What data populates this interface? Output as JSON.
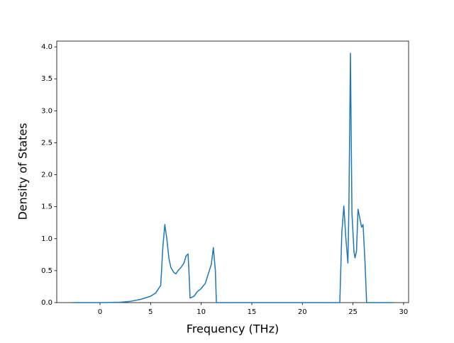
{
  "chart_data": {
    "type": "line",
    "x_label": "Frequency (THz)",
    "y_label": "Density of States",
    "x": [
      -2.7,
      0,
      2,
      3,
      4,
      5,
      5.5,
      6,
      6.2,
      6.4,
      6.6,
      6.8,
      7.0,
      7.3,
      7.5,
      7.7,
      8.0,
      8.3,
      8.5,
      8.7,
      8.8,
      8.9,
      9.3,
      9.6,
      10.0,
      10.4,
      10.7,
      11.0,
      11.2,
      11.4,
      11.5,
      12,
      23.7,
      23.9,
      24.1,
      24.3,
      24.5,
      24.6,
      24.75,
      24.9,
      25.1,
      25.2,
      25.35,
      25.5,
      25.7,
      25.85,
      26.0,
      26.2,
      26.35,
      29
    ],
    "series": [
      {
        "color": "#1f77b4",
        "values": [
          0,
          0,
          0.005,
          0.02,
          0.05,
          0.1,
          0.15,
          0.27,
          0.85,
          1.22,
          1.0,
          0.7,
          0.55,
          0.47,
          0.45,
          0.5,
          0.55,
          0.62,
          0.73,
          0.76,
          0.45,
          0.07,
          0.1,
          0.17,
          0.22,
          0.3,
          0.45,
          0.6,
          0.86,
          0.5,
          0,
          0,
          0,
          1.1,
          1.51,
          1.0,
          0.62,
          1.5,
          3.9,
          1.4,
          0.8,
          0.7,
          0.8,
          1.46,
          1.3,
          1.18,
          1.22,
          0.6,
          0,
          0
        ]
      }
    ],
    "xlim": [
      -4.28,
      30.5
    ],
    "ylim": [
      0,
      4.09
    ],
    "xticks": [
      0,
      5,
      10,
      15,
      20,
      25,
      30
    ],
    "yticks": [
      {
        "value": 0,
        "label": "0.0"
      },
      {
        "value": 0.5,
        "label": "0.5"
      },
      {
        "value": 1,
        "label": "1.0"
      },
      {
        "value": 1.5,
        "label": "1.5"
      },
      {
        "value": 2,
        "label": "2.0"
      },
      {
        "value": 2.5,
        "label": "2.5"
      },
      {
        "value": 3,
        "label": "3.0"
      },
      {
        "value": 3.5,
        "label": "3.5"
      },
      {
        "value": 4,
        "label": "4.0"
      }
    ]
  }
}
